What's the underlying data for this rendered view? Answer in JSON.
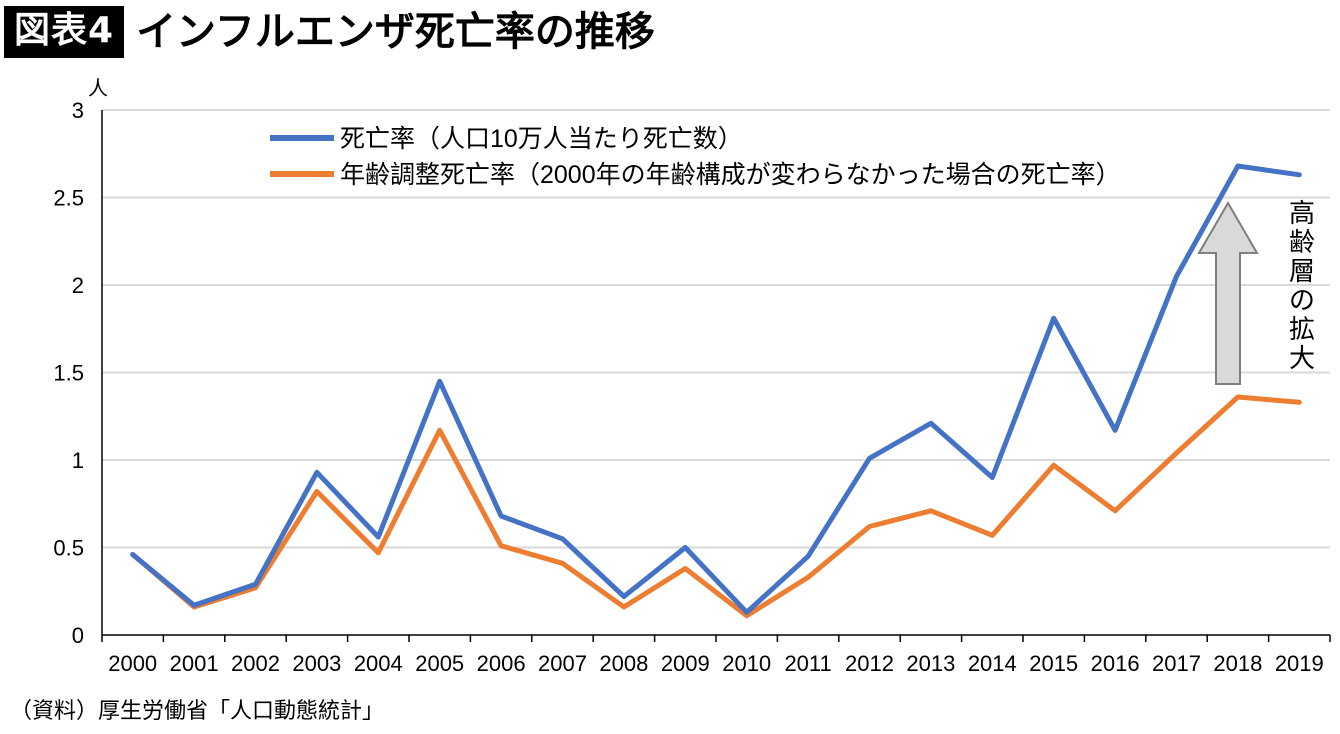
{
  "header": {
    "tag": "図表4",
    "title": "インフルエンザ死亡率の推移"
  },
  "source": "（資料）厚生労働省「人口動態統計」",
  "annotation": "高齢層の拡大",
  "chart_data": {
    "type": "line",
    "unit_label": "人",
    "categories": [
      "2000",
      "2001",
      "2002",
      "2003",
      "2004",
      "2005",
      "2006",
      "2007",
      "2008",
      "2009",
      "2010",
      "2011",
      "2012",
      "2013",
      "2014",
      "2015",
      "2016",
      "2017",
      "2018",
      "2019"
    ],
    "y_ticks": [
      "0",
      "0.5",
      "1",
      "1.5",
      "2",
      "2.5",
      "3"
    ],
    "ylim": [
      0,
      3
    ],
    "grid": true,
    "legend_position": "top-left",
    "series": [
      {
        "name": "死亡率（人口10万人当たり死亡数）",
        "color": "#4472C4",
        "values": [
          0.46,
          0.17,
          0.29,
          0.93,
          0.56,
          1.45,
          0.68,
          0.55,
          0.22,
          0.5,
          0.13,
          0.45,
          1.01,
          1.21,
          0.9,
          1.81,
          1.17,
          2.05,
          2.68,
          2.63
        ]
      },
      {
        "name": "年齢調整死亡率（2000年の年齢構成が変わらなかった場合の死亡率）",
        "color": "#ED7D31",
        "values": [
          0.46,
          0.16,
          0.27,
          0.82,
          0.47,
          1.17,
          0.51,
          0.41,
          0.16,
          0.38,
          0.11,
          0.33,
          0.62,
          0.71,
          0.57,
          0.97,
          0.71,
          1.04,
          1.36,
          1.33
        ]
      }
    ]
  }
}
